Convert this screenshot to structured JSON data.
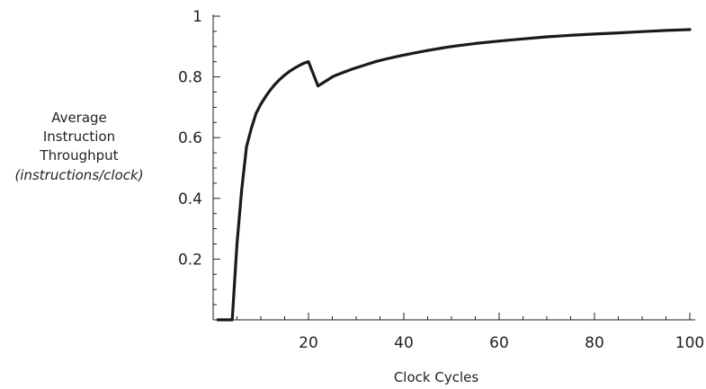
{
  "chart_data": {
    "type": "line",
    "xlabel": "Clock Cycles",
    "ylabel_lines": [
      "Average",
      "Instruction",
      "Throughput",
      "(instructions/clock)"
    ],
    "xlim": [
      0,
      100
    ],
    "ylim": [
      0,
      1
    ],
    "x_ticks": [
      20,
      40,
      60,
      80,
      100
    ],
    "y_ticks": [
      0.2,
      0.4,
      0.6,
      0.8,
      1
    ],
    "x_tick_labels": [
      "20",
      "40",
      "60",
      "80",
      "100"
    ],
    "y_tick_labels": [
      "0.2",
      "0.4",
      "0.6",
      "0.8",
      "1"
    ],
    "grid": false,
    "series": [
      {
        "color": "#1a1a1a",
        "x": [
          1,
          2,
          3,
          4,
          5,
          6,
          7,
          8,
          9,
          10,
          11,
          12,
          13,
          14,
          15,
          16,
          17,
          18,
          19,
          20,
          21,
          22,
          23,
          24,
          25,
          26,
          27,
          28,
          29,
          30,
          32,
          34,
          36,
          38,
          40,
          42,
          45,
          48,
          50,
          55,
          60,
          65,
          70,
          75,
          80,
          85,
          90,
          95,
          100
        ],
        "y": [
          0,
          0,
          0,
          0,
          0.25,
          0.43,
          0.57,
          0.63,
          0.68,
          0.71,
          0.735,
          0.757,
          0.776,
          0.792,
          0.806,
          0.818,
          0.828,
          0.837,
          0.845,
          0.85,
          0.81,
          0.77,
          0.78,
          0.79,
          0.8,
          0.807,
          0.813,
          0.819,
          0.825,
          0.83,
          0.84,
          0.85,
          0.858,
          0.865,
          0.872,
          0.878,
          0.887,
          0.895,
          0.9,
          0.91,
          0.918,
          0.925,
          0.932,
          0.937,
          0.941,
          0.945,
          0.949,
          0.953,
          0.956
        ]
      }
    ]
  }
}
